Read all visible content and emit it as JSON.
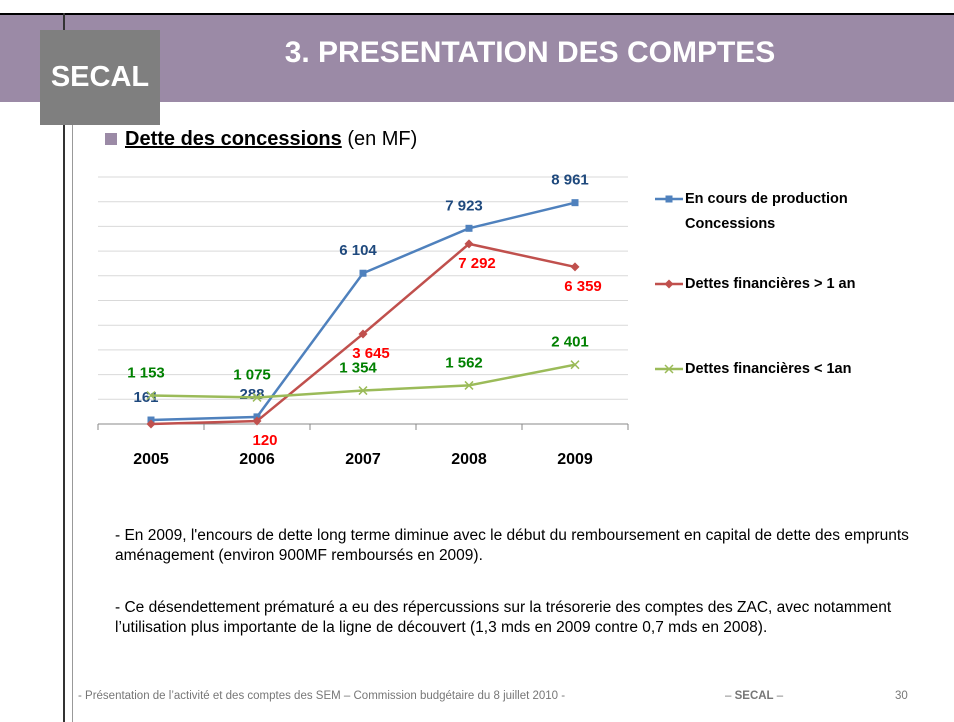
{
  "header": {
    "logo": "SECAL",
    "title": "3. PRESENTATION DES COMPTES"
  },
  "bullet": {
    "title": "Dette des concessions",
    "unit": "(en MF)"
  },
  "chart_data": {
    "type": "line",
    "categories": [
      "2005",
      "2006",
      "2007",
      "2008",
      "2009"
    ],
    "ylim": [
      0,
      10000
    ],
    "yticks": [
      0,
      1000,
      2000,
      3000,
      4000,
      5000,
      6000,
      7000,
      8000,
      9000,
      10000
    ],
    "grid": true,
    "legend": "right",
    "series": [
      {
        "name": "En cours de production Concessions",
        "color": "#4f81bd",
        "label_color": "#1f497d",
        "marker": "square",
        "values": [
          161,
          288,
          6104,
          7923,
          8961
        ],
        "value_labels": [
          "161",
          "288",
          "6 104",
          "7 923",
          "8 961"
        ]
      },
      {
        "name": "Dettes financières > 1 an",
        "color": "#c0504d",
        "label_color": "#ff0000",
        "marker": "diamond",
        "values": [
          0,
          120,
          3645,
          7292,
          6359
        ],
        "value_labels": [
          null,
          "120",
          "3 645",
          "7 292",
          "6 359"
        ]
      },
      {
        "name": "Dettes financières < 1an",
        "color": "#9bbb59",
        "label_color": "#008000",
        "marker": "x",
        "values": [
          1153,
          1075,
          1354,
          1562,
          2401
        ],
        "value_labels": [
          "1 153",
          "1 075",
          "1 354",
          "1 562",
          "2 401"
        ]
      }
    ]
  },
  "paragraphs": [
    "- En 2009, l'encours de dette long terme diminue avec le début du remboursement en capital de dette des emprunts aménagement (environ 900MF remboursés en 2009).",
    "- Ce désendettement prématuré a eu des répercussions sur la trésorerie des comptes des ZAC, avec notamment l’utilisation plus importante de la ligne de découvert (1,3 mds en 2009 contre 0,7 mds en 2008)."
  ],
  "footer": {
    "left": "- Présentation de l’activité et des comptes des SEM – Commission budgétaire du 8 juillet 2010 -",
    "center_prefix": "–",
    "center_brand": "SECAL",
    "center_suffix": "–",
    "page": "30"
  }
}
